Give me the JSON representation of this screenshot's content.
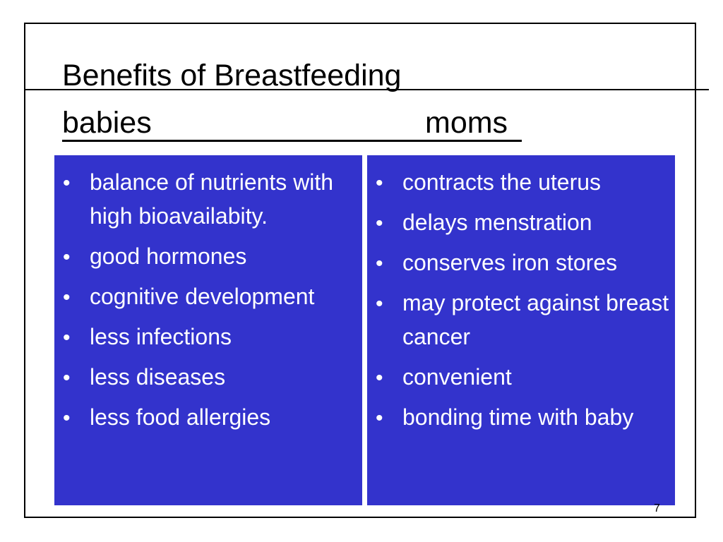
{
  "slide": {
    "title": "Benefits of Breastfeeding",
    "headings": {
      "babies": "babies",
      "moms": "moms"
    },
    "babies_items": [
      "balance of nutrients with high bioavailabity.",
      "good hormones",
      "cognitive development",
      "less infections",
      "less diseases",
      "less food allergies"
    ],
    "moms_items": [
      "contracts the uterus",
      "delays menstration",
      "conserves iron stores",
      "may protect against breast cancer",
      "convenient",
      "bonding time with baby"
    ],
    "page_number": "7"
  },
  "colors": {
    "panel": "#3333cc",
    "panel_text": "#ffffff",
    "background": "#ffffff",
    "lines": "#000000"
  }
}
